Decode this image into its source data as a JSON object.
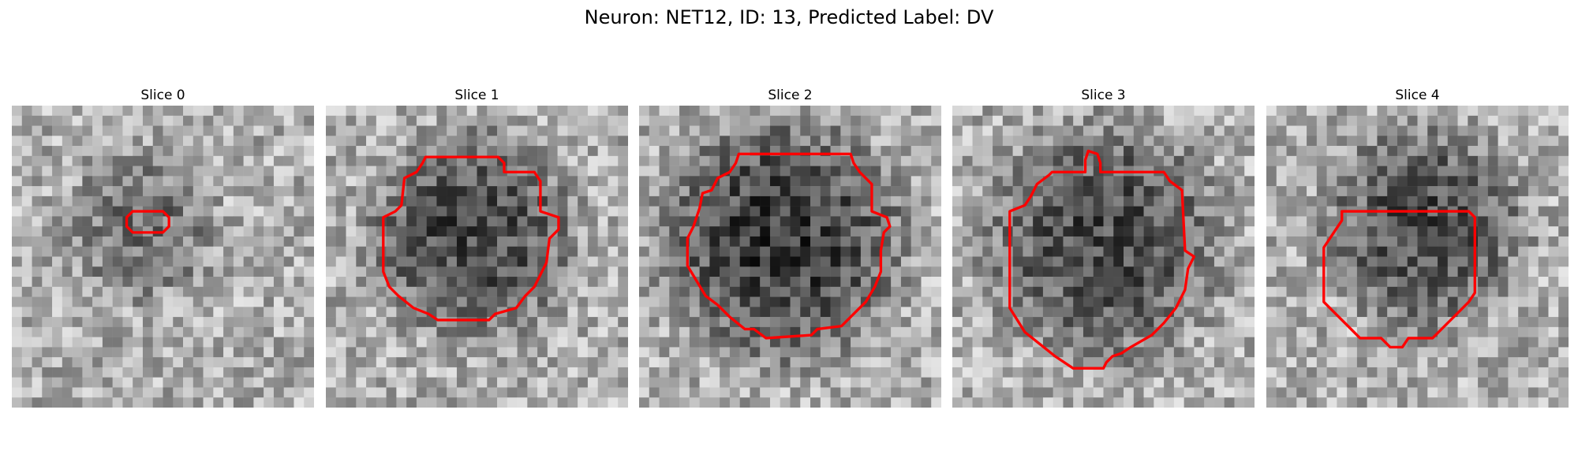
{
  "figure": {
    "title": "Neuron: NET12, ID: 13, Predicted Label: DV",
    "contour_color": "#ff0000"
  },
  "panels": [
    {
      "title": "Slice 0",
      "dark_center": [
        0.43,
        0.4
      ],
      "dark_radius": 0.22,
      "dark_strength": 0.45,
      "contour": [
        [
          0.4,
          0.35
        ],
        [
          0.5,
          0.35
        ],
        [
          0.52,
          0.37
        ],
        [
          0.52,
          0.4
        ],
        [
          0.5,
          0.42
        ],
        [
          0.4,
          0.42
        ],
        [
          0.38,
          0.4
        ],
        [
          0.38,
          0.37
        ]
      ]
    },
    {
      "title": "Slice 1",
      "dark_center": [
        0.48,
        0.43
      ],
      "dark_radius": 0.3,
      "dark_strength": 0.75,
      "contour": [
        [
          0.33,
          0.17
        ],
        [
          0.57,
          0.17
        ],
        [
          0.59,
          0.19
        ],
        [
          0.59,
          0.22
        ],
        [
          0.69,
          0.22
        ],
        [
          0.71,
          0.25
        ],
        [
          0.71,
          0.35
        ],
        [
          0.77,
          0.37
        ],
        [
          0.77,
          0.41
        ],
        [
          0.74,
          0.44
        ],
        [
          0.73,
          0.52
        ],
        [
          0.69,
          0.6
        ],
        [
          0.66,
          0.63
        ],
        [
          0.63,
          0.67
        ],
        [
          0.56,
          0.69
        ],
        [
          0.54,
          0.71
        ],
        [
          0.37,
          0.71
        ],
        [
          0.34,
          0.69
        ],
        [
          0.29,
          0.67
        ],
        [
          0.24,
          0.63
        ],
        [
          0.21,
          0.6
        ],
        [
          0.19,
          0.55
        ],
        [
          0.19,
          0.37
        ],
        [
          0.23,
          0.35
        ],
        [
          0.25,
          0.33
        ],
        [
          0.26,
          0.24
        ],
        [
          0.3,
          0.22
        ],
        [
          0.32,
          0.19
        ]
      ]
    },
    {
      "title": "Slice 2",
      "dark_center": [
        0.47,
        0.45
      ],
      "dark_radius": 0.36,
      "dark_strength": 0.85,
      "contour": [
        [
          0.33,
          0.16
        ],
        [
          0.7,
          0.16
        ],
        [
          0.71,
          0.19
        ],
        [
          0.73,
          0.22
        ],
        [
          0.75,
          0.24
        ],
        [
          0.77,
          0.26
        ],
        [
          0.77,
          0.35
        ],
        [
          0.82,
          0.37
        ],
        [
          0.83,
          0.4
        ],
        [
          0.81,
          0.42
        ],
        [
          0.8,
          0.48
        ],
        [
          0.8,
          0.55
        ],
        [
          0.78,
          0.6
        ],
        [
          0.75,
          0.65
        ],
        [
          0.7,
          0.7
        ],
        [
          0.67,
          0.73
        ],
        [
          0.59,
          0.74
        ],
        [
          0.57,
          0.76
        ],
        [
          0.42,
          0.77
        ],
        [
          0.38,
          0.74
        ],
        [
          0.35,
          0.74
        ],
        [
          0.3,
          0.7
        ],
        [
          0.26,
          0.66
        ],
        [
          0.22,
          0.63
        ],
        [
          0.19,
          0.58
        ],
        [
          0.16,
          0.53
        ],
        [
          0.16,
          0.44
        ],
        [
          0.18,
          0.4
        ],
        [
          0.2,
          0.34
        ],
        [
          0.21,
          0.29
        ],
        [
          0.24,
          0.28
        ],
        [
          0.26,
          0.24
        ],
        [
          0.3,
          0.22
        ],
        [
          0.32,
          0.19
        ]
      ]
    },
    {
      "title": "Slice 3",
      "dark_center": [
        0.5,
        0.45
      ],
      "dark_radius": 0.35,
      "dark_strength": 0.72,
      "contour": [
        [
          0.45,
          0.15
        ],
        [
          0.48,
          0.16
        ],
        [
          0.49,
          0.19
        ],
        [
          0.49,
          0.22
        ],
        [
          0.7,
          0.22
        ],
        [
          0.72,
          0.25
        ],
        [
          0.76,
          0.28
        ],
        [
          0.77,
          0.48
        ],
        [
          0.8,
          0.5
        ],
        [
          0.78,
          0.54
        ],
        [
          0.77,
          0.61
        ],
        [
          0.74,
          0.67
        ],
        [
          0.7,
          0.72
        ],
        [
          0.66,
          0.76
        ],
        [
          0.59,
          0.8
        ],
        [
          0.56,
          0.82
        ],
        [
          0.53,
          0.83
        ],
        [
          0.51,
          0.85
        ],
        [
          0.5,
          0.87
        ],
        [
          0.4,
          0.87
        ],
        [
          0.34,
          0.83
        ],
        [
          0.29,
          0.79
        ],
        [
          0.24,
          0.75
        ],
        [
          0.19,
          0.67
        ],
        [
          0.19,
          0.35
        ],
        [
          0.24,
          0.33
        ],
        [
          0.26,
          0.3
        ],
        [
          0.28,
          0.26
        ],
        [
          0.32,
          0.23
        ],
        [
          0.33,
          0.22
        ],
        [
          0.44,
          0.22
        ],
        [
          0.44,
          0.18
        ]
      ]
    },
    {
      "title": "Slice 4",
      "dark_center": [
        0.52,
        0.4
      ],
      "dark_radius": 0.3,
      "dark_strength": 0.7,
      "contour": [
        [
          0.25,
          0.35
        ],
        [
          0.67,
          0.35
        ],
        [
          0.69,
          0.37
        ],
        [
          0.69,
          0.62
        ],
        [
          0.67,
          0.65
        ],
        [
          0.63,
          0.69
        ],
        [
          0.59,
          0.73
        ],
        [
          0.55,
          0.77
        ],
        [
          0.47,
          0.77
        ],
        [
          0.45,
          0.8
        ],
        [
          0.41,
          0.8
        ],
        [
          0.38,
          0.77
        ],
        [
          0.31,
          0.77
        ],
        [
          0.27,
          0.73
        ],
        [
          0.23,
          0.69
        ],
        [
          0.19,
          0.65
        ],
        [
          0.19,
          0.47
        ],
        [
          0.21,
          0.44
        ],
        [
          0.23,
          0.41
        ],
        [
          0.25,
          0.38
        ]
      ]
    }
  ]
}
